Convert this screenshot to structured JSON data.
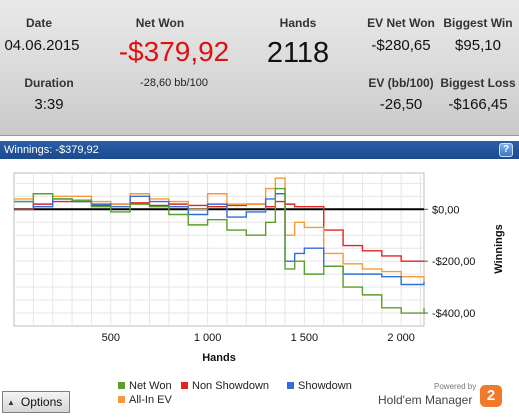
{
  "stats": {
    "date_label": "Date",
    "date_value": "04.06.2015",
    "duration_label": "Duration",
    "duration_value": "3:39",
    "net_won_label": "Net Won",
    "net_won_value": "-$379,92",
    "net_won_sub": "-28,60 bb/100",
    "hands_label": "Hands",
    "hands_value": "2118",
    "ev_net_won_label": "EV Net Won",
    "ev_net_won_value": "-$280,65",
    "biggest_win_label": "Biggest Win",
    "biggest_win_value": "$95,10",
    "ev_bb_label": "EV (bb/100)",
    "ev_bb_value": "-26,50",
    "biggest_loss_label": "Biggest Loss",
    "biggest_loss_value": "-$166,45"
  },
  "chart_header": {
    "title": "Winnings: -$379,92",
    "help_icon": "?"
  },
  "colors": {
    "net_won": "#5a9e2f",
    "non_showdown": "#e32222",
    "showdown": "#2f6fd6",
    "all_in_ev": "#f49a3a",
    "negative": "#e01010",
    "header_bar": "#1f4f94"
  },
  "chart_data": {
    "type": "line",
    "xlabel": "Hands",
    "ylabel": "Winnings",
    "xlim": [
      0,
      2118
    ],
    "ylim": [
      -450,
      140
    ],
    "x_ticks": [
      500,
      1000,
      1500,
      2000
    ],
    "x_tick_labels": [
      "500",
      "1 000",
      "1 500",
      "2 000"
    ],
    "y_ticks": [
      0,
      -200,
      -400
    ],
    "y_tick_labels": [
      "$0,00",
      "-$200,00",
      "-$400,00"
    ],
    "grid": true,
    "legend_position": "bottom",
    "x": [
      0,
      100,
      200,
      300,
      400,
      500,
      600,
      700,
      800,
      900,
      1000,
      1100,
      1200,
      1300,
      1350,
      1400,
      1450,
      1500,
      1600,
      1700,
      1800,
      1900,
      2000,
      2118
    ],
    "series": [
      {
        "name": "Net Won",
        "values": [
          30,
          60,
          40,
          35,
          10,
          -10,
          20,
          10,
          -20,
          -60,
          -40,
          -80,
          -100,
          -50,
          80,
          -230,
          -200,
          -250,
          -220,
          -300,
          -330,
          -380,
          -400,
          -380
        ]
      },
      {
        "name": "Non Showdown",
        "values": [
          0,
          20,
          30,
          30,
          15,
          20,
          25,
          15,
          20,
          15,
          10,
          15,
          20,
          10,
          30,
          20,
          10,
          10,
          -80,
          -140,
          -160,
          -180,
          -200,
          -200
        ]
      },
      {
        "name": "Showdown",
        "values": [
          30,
          10,
          40,
          30,
          20,
          10,
          50,
          30,
          10,
          -20,
          20,
          -30,
          -10,
          40,
          60,
          -200,
          -170,
          -150,
          -220,
          -250,
          -250,
          -260,
          -290,
          -280
        ]
      },
      {
        "name": "All-In EV",
        "values": [
          40,
          60,
          50,
          50,
          30,
          20,
          60,
          40,
          30,
          0,
          60,
          20,
          20,
          80,
          120,
          -100,
          -50,
          -70,
          -170,
          -210,
          -230,
          -240,
          -260,
          -280
        ]
      }
    ]
  },
  "legend": [
    {
      "label": "Net Won",
      "color": "#5a9e2f"
    },
    {
      "label": "Non Showdown",
      "color": "#e32222"
    },
    {
      "label": "Showdown",
      "color": "#2f6fd6"
    },
    {
      "label": "All-In EV",
      "color": "#f49a3a"
    }
  ],
  "options_button": {
    "label": "Options",
    "icon": "triangle-up-icon"
  },
  "branding": {
    "powered_by": "Powered by",
    "name": "Hold'em Manager",
    "logo_text": "2"
  }
}
